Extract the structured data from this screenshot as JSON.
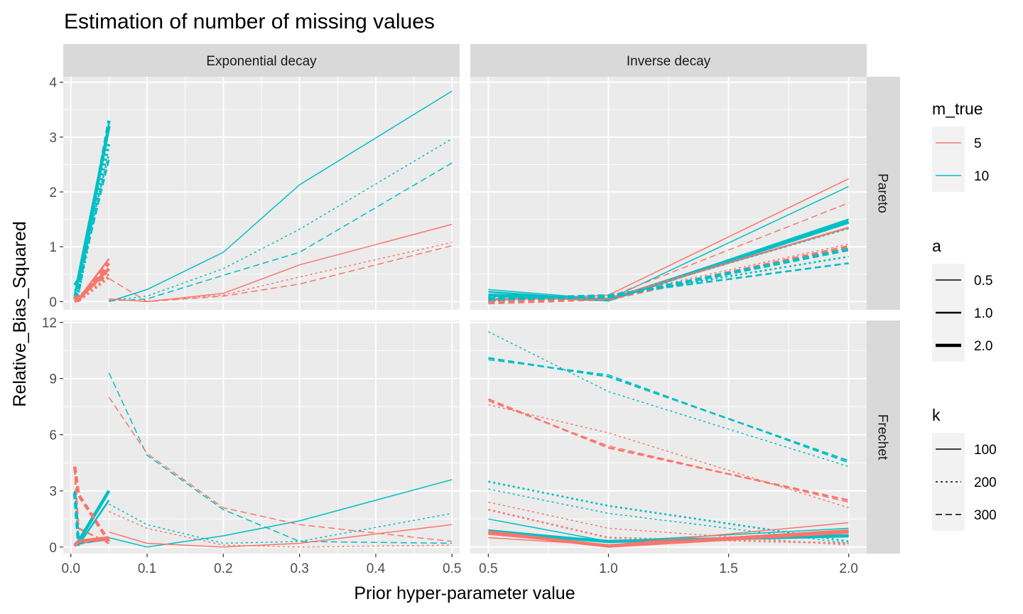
{
  "chart_data": {
    "type": "line",
    "title": "Estimation of number of missing values",
    "xlabel": "Prior hyper-parameter value",
    "ylabel": "Relative_Bias_Squared",
    "grid": true,
    "legend_position": "right",
    "columns": [
      {
        "label": "Exponential decay",
        "xlim": [
          -0.01,
          0.51
        ],
        "xticks": [
          0.0,
          0.1,
          0.2,
          0.3,
          0.4,
          0.5
        ],
        "xtick_labels": [
          "0.0",
          "0.1",
          "0.2",
          "0.3",
          "0.4",
          "0.5"
        ]
      },
      {
        "label": "Inverse decay",
        "xlim": [
          0.425,
          2.075
        ],
        "xticks": [
          0.5,
          1.0,
          1.5,
          2.0
        ],
        "xtick_labels": [
          "0.5",
          "1.0",
          "1.5",
          "2.0"
        ]
      }
    ],
    "rows": [
      {
        "label": "Pareto",
        "ylim": [
          -0.15,
          4.1
        ],
        "yticks": [
          0,
          1,
          2,
          3,
          4
        ],
        "ytick_labels": [
          "0",
          "1",
          "2",
          "3",
          "4"
        ]
      },
      {
        "label": "Frechet",
        "ylim": [
          -0.35,
          12.1
        ],
        "yticks": [
          0,
          3,
          6,
          9,
          12
        ],
        "ytick_labels": [
          "0",
          "3",
          "6",
          "9",
          "12"
        ]
      }
    ],
    "legends": [
      {
        "title": "m_true",
        "kind": "color",
        "entries": [
          {
            "label": "5",
            "color": "#F8766D"
          },
          {
            "label": "10",
            "color": "#00BFC4"
          }
        ]
      },
      {
        "title": "a",
        "kind": "linewidth",
        "entries": [
          {
            "label": "0.5",
            "a": 0.5
          },
          {
            "label": "1.0",
            "a": 1.0
          },
          {
            "label": "2.0",
            "a": 2.0
          }
        ]
      },
      {
        "title": "k",
        "kind": "linetype",
        "entries": [
          {
            "label": "100",
            "k": 100
          },
          {
            "label": "200",
            "k": 200
          },
          {
            "label": "300",
            "k": 300
          }
        ]
      }
    ],
    "series": [
      {
        "col": 0,
        "row": 0,
        "m_true": 10,
        "a": 0.5,
        "k": 100,
        "x": [
          0.05,
          0.1,
          0.2,
          0.3,
          0.5
        ],
        "y": [
          0.0,
          0.22,
          0.9,
          2.13,
          3.84
        ]
      },
      {
        "col": 0,
        "row": 0,
        "m_true": 10,
        "a": 0.5,
        "k": 200,
        "x": [
          0.05,
          0.1,
          0.2,
          0.3,
          0.5
        ],
        "y": [
          0.02,
          0.1,
          0.6,
          1.32,
          2.97
        ]
      },
      {
        "col": 0,
        "row": 0,
        "m_true": 10,
        "a": 0.5,
        "k": 300,
        "x": [
          0.05,
          0.1,
          0.2,
          0.3,
          0.5
        ],
        "y": [
          0.01,
          0.05,
          0.48,
          0.9,
          2.53
        ]
      },
      {
        "col": 0,
        "row": 0,
        "m_true": 5,
        "a": 0.5,
        "k": 100,
        "x": [
          0.05,
          0.1,
          0.2,
          0.3,
          0.5
        ],
        "y": [
          0.05,
          0.0,
          0.15,
          0.67,
          1.41
        ]
      },
      {
        "col": 0,
        "row": 0,
        "m_true": 5,
        "a": 0.5,
        "k": 200,
        "x": [
          0.05,
          0.1,
          0.2,
          0.3,
          0.5
        ],
        "y": [
          0.03,
          0.01,
          0.12,
          0.45,
          1.08
        ]
      },
      {
        "col": 0,
        "row": 0,
        "m_true": 5,
        "a": 0.5,
        "k": 300,
        "x": [
          0.05,
          0.1,
          0.2,
          0.3,
          0.5
        ],
        "y": [
          0.42,
          0.0,
          0.1,
          0.32,
          1.02
        ]
      },
      {
        "col": 0,
        "row": 0,
        "m_true": 10,
        "a": 1.0,
        "k": 100,
        "x": [
          0.005,
          0.01,
          0.05
        ],
        "y": [
          0.1,
          0.5,
          3.25
        ]
      },
      {
        "col": 0,
        "row": 0,
        "m_true": 10,
        "a": 1.0,
        "k": 200,
        "x": [
          0.005,
          0.01,
          0.05
        ],
        "y": [
          0.05,
          0.4,
          2.7
        ]
      },
      {
        "col": 0,
        "row": 0,
        "m_true": 10,
        "a": 1.0,
        "k": 300,
        "x": [
          0.005,
          0.01,
          0.05
        ],
        "y": [
          0.2,
          0.3,
          2.6
        ]
      },
      {
        "col": 0,
        "row": 0,
        "m_true": 5,
        "a": 1.0,
        "k": 100,
        "x": [
          0.005,
          0.01,
          0.05
        ],
        "y": [
          0.0,
          0.05,
          0.78
        ]
      },
      {
        "col": 0,
        "row": 0,
        "m_true": 5,
        "a": 1.0,
        "k": 200,
        "x": [
          0.005,
          0.01,
          0.05
        ],
        "y": [
          0.02,
          0.1,
          0.55
        ]
      },
      {
        "col": 0,
        "row": 0,
        "m_true": 5,
        "a": 1.0,
        "k": 300,
        "x": [
          0.005,
          0.01,
          0.05
        ],
        "y": [
          0.05,
          0.1,
          0.5
        ]
      },
      {
        "col": 0,
        "row": 0,
        "m_true": 10,
        "a": 2.0,
        "k": 100,
        "x": [
          0.005,
          0.01,
          0.05
        ],
        "y": [
          0.3,
          0.4,
          3.2
        ]
      },
      {
        "col": 0,
        "row": 0,
        "m_true": 10,
        "a": 2.0,
        "k": 200,
        "x": [
          0.005,
          0.01,
          0.05
        ],
        "y": [
          0.1,
          0.2,
          2.9
        ]
      },
      {
        "col": 0,
        "row": 0,
        "m_true": 10,
        "a": 2.0,
        "k": 300,
        "x": [
          0.005,
          0.01,
          0.05
        ],
        "y": [
          0.05,
          0.2,
          3.3
        ]
      },
      {
        "col": 0,
        "row": 0,
        "m_true": 5,
        "a": 2.0,
        "k": 100,
        "x": [
          0.005,
          0.01,
          0.05
        ],
        "y": [
          0.0,
          0.05,
          0.6
        ]
      },
      {
        "col": 0,
        "row": 0,
        "m_true": 5,
        "a": 2.0,
        "k": 200,
        "x": [
          0.005,
          0.01,
          0.05
        ],
        "y": [
          0.05,
          0.02,
          0.45
        ]
      },
      {
        "col": 0,
        "row": 0,
        "m_true": 5,
        "a": 2.0,
        "k": 300,
        "x": [
          0.005,
          0.01,
          0.05
        ],
        "y": [
          0.1,
          0.02,
          0.7
        ]
      },
      {
        "col": 1,
        "row": 0,
        "m_true": 5,
        "a": 0.5,
        "k": 100,
        "x": [
          0.5,
          1.0,
          2.0
        ],
        "y": [
          0.02,
          0.12,
          2.24
        ]
      },
      {
        "col": 1,
        "row": 0,
        "m_true": 10,
        "a": 0.5,
        "k": 100,
        "x": [
          0.5,
          1.0,
          2.0
        ],
        "y": [
          0.22,
          0.04,
          2.1
        ]
      },
      {
        "col": 1,
        "row": 0,
        "m_true": 5,
        "a": 0.5,
        "k": 300,
        "x": [
          0.5,
          1.0,
          2.0
        ],
        "y": [
          0.1,
          0.08,
          1.8
        ]
      },
      {
        "col": 1,
        "row": 0,
        "m_true": 10,
        "a": 1.0,
        "k": 100,
        "x": [
          0.5,
          1.0,
          2.0
        ],
        "y": [
          0.18,
          0.02,
          1.5
        ]
      },
      {
        "col": 1,
        "row": 0,
        "m_true": 10,
        "a": 2.0,
        "k": 100,
        "x": [
          0.5,
          1.0,
          2.0
        ],
        "y": [
          0.12,
          0.03,
          1.45
        ]
      },
      {
        "col": 1,
        "row": 0,
        "m_true": 5,
        "a": 1.0,
        "k": 100,
        "x": [
          0.5,
          1.0,
          2.0
        ],
        "y": [
          0.05,
          0.06,
          1.35
        ]
      },
      {
        "col": 1,
        "row": 0,
        "m_true": 10,
        "a": 0.5,
        "k": 200,
        "x": [
          0.5,
          1.0,
          2.0
        ],
        "y": [
          0.08,
          0.06,
          1.33
        ]
      },
      {
        "col": 1,
        "row": 0,
        "m_true": 5,
        "a": 0.5,
        "k": 200,
        "x": [
          0.5,
          1.0,
          2.0
        ],
        "y": [
          0.0,
          0.1,
          1.05
        ]
      },
      {
        "col": 1,
        "row": 0,
        "m_true": 5,
        "a": 2.0,
        "k": 300,
        "x": [
          0.5,
          1.0,
          2.0
        ],
        "y": [
          -0.02,
          0.05,
          1.0
        ]
      },
      {
        "col": 1,
        "row": 0,
        "m_true": 10,
        "a": 2.0,
        "k": 300,
        "x": [
          0.5,
          1.0,
          2.0
        ],
        "y": [
          0.05,
          0.08,
          0.95
        ]
      },
      {
        "col": 1,
        "row": 0,
        "m_true": 10,
        "a": 1.0,
        "k": 200,
        "x": [
          0.5,
          1.0,
          2.0
        ],
        "y": [
          0.02,
          0.1,
          0.82
        ]
      },
      {
        "col": 1,
        "row": 0,
        "m_true": 10,
        "a": 1.0,
        "k": 300,
        "x": [
          0.5,
          1.0,
          2.0
        ],
        "y": [
          0.06,
          0.12,
          0.7
        ]
      },
      {
        "col": 0,
        "row": 1,
        "m_true": 10,
        "a": 0.5,
        "k": 100,
        "x": [
          0.05,
          0.1,
          0.2,
          0.3,
          0.5
        ],
        "y": [
          0.5,
          0.0,
          0.6,
          1.4,
          3.6
        ]
      },
      {
        "col": 0,
        "row": 1,
        "m_true": 10,
        "a": 0.5,
        "k": 200,
        "x": [
          0.05,
          0.1,
          0.2,
          0.3,
          0.5
        ],
        "y": [
          2.3,
          1.2,
          0.2,
          0.3,
          1.8
        ]
      },
      {
        "col": 0,
        "row": 1,
        "m_true": 10,
        "a": 0.5,
        "k": 300,
        "x": [
          0.05,
          0.1,
          0.2,
          0.3,
          0.5
        ],
        "y": [
          9.3,
          4.9,
          2.0,
          0.3,
          0.2
        ]
      },
      {
        "col": 0,
        "row": 1,
        "m_true": 5,
        "a": 0.5,
        "k": 100,
        "x": [
          0.05,
          0.1,
          0.2,
          0.3,
          0.5
        ],
        "y": [
          0.8,
          0.2,
          0.0,
          0.2,
          1.2
        ]
      },
      {
        "col": 0,
        "row": 1,
        "m_true": 5,
        "a": 0.5,
        "k": 200,
        "x": [
          0.05,
          0.1,
          0.2,
          0.3,
          0.5
        ],
        "y": [
          1.9,
          1.0,
          0.1,
          0.0,
          0.1
        ]
      },
      {
        "col": 0,
        "row": 1,
        "m_true": 5,
        "a": 0.5,
        "k": 300,
        "x": [
          0.05,
          0.1,
          0.2,
          0.3,
          0.5
        ],
        "y": [
          8.0,
          5.0,
          2.1,
          1.2,
          0.3
        ]
      },
      {
        "col": 0,
        "row": 1,
        "m_true": 10,
        "a": 1.0,
        "k": 100,
        "x": [
          0.005,
          0.01,
          0.05
        ],
        "y": [
          0.2,
          0.1,
          2.5
        ]
      },
      {
        "col": 0,
        "row": 1,
        "m_true": 10,
        "a": 1.0,
        "k": 300,
        "x": [
          0.005,
          0.01,
          0.05
        ],
        "y": [
          3.0,
          0.3,
          0.4
        ]
      },
      {
        "col": 0,
        "row": 1,
        "m_true": 5,
        "a": 1.0,
        "k": 100,
        "x": [
          0.005,
          0.01,
          0.05
        ],
        "y": [
          0.1,
          0.2,
          0.4
        ]
      },
      {
        "col": 0,
        "row": 1,
        "m_true": 5,
        "a": 1.0,
        "k": 300,
        "x": [
          0.005,
          0.01,
          0.05
        ],
        "y": [
          4.2,
          1.0,
          0.2
        ]
      },
      {
        "col": 0,
        "row": 1,
        "m_true": 10,
        "a": 2.0,
        "k": 100,
        "x": [
          0.005,
          0.01,
          0.05
        ],
        "y": [
          0.1,
          0.3,
          3.0
        ]
      },
      {
        "col": 0,
        "row": 1,
        "m_true": 10,
        "a": 2.0,
        "k": 300,
        "x": [
          0.005,
          0.01,
          0.05
        ],
        "y": [
          2.9,
          0.2,
          0.5
        ]
      },
      {
        "col": 0,
        "row": 1,
        "m_true": 5,
        "a": 2.0,
        "k": 100,
        "x": [
          0.005,
          0.01,
          0.05
        ],
        "y": [
          0.05,
          0.3,
          0.5
        ]
      },
      {
        "col": 0,
        "row": 1,
        "m_true": 5,
        "a": 2.0,
        "k": 300,
        "x": [
          0.005,
          0.01,
          0.05
        ],
        "y": [
          4.3,
          2.8,
          0.3
        ]
      },
      {
        "col": 1,
        "row": 1,
        "m_true": 10,
        "a": 0.5,
        "k": 200,
        "x": [
          0.5,
          1.0,
          2.0
        ],
        "y": [
          11.5,
          8.3,
          4.3
        ]
      },
      {
        "col": 1,
        "row": 1,
        "m_true": 10,
        "a": 1.0,
        "k": 300,
        "x": [
          0.5,
          1.0,
          2.0
        ],
        "y": [
          10.1,
          9.1,
          4.6
        ]
      },
      {
        "col": 1,
        "row": 1,
        "m_true": 10,
        "a": 0.5,
        "k": 300,
        "x": [
          0.5,
          1.0,
          2.0
        ],
        "y": [
          10.0,
          9.2,
          4.5
        ]
      },
      {
        "col": 1,
        "row": 1,
        "m_true": 5,
        "a": 1.0,
        "k": 300,
        "x": [
          0.5,
          1.0,
          2.0
        ],
        "y": [
          7.9,
          5.3,
          2.5
        ]
      },
      {
        "col": 1,
        "row": 1,
        "m_true": 5,
        "a": 0.5,
        "k": 300,
        "x": [
          0.5,
          1.0,
          2.0
        ],
        "y": [
          7.8,
          5.4,
          2.4
        ]
      },
      {
        "col": 1,
        "row": 1,
        "m_true": 5,
        "a": 0.5,
        "k": 200,
        "x": [
          0.5,
          1.0,
          2.0
        ],
        "y": [
          7.6,
          6.1,
          2.1
        ]
      },
      {
        "col": 1,
        "row": 1,
        "m_true": 10,
        "a": 0.5,
        "k": 100,
        "x": [
          0.5,
          1.0,
          2.0
        ],
        "y": [
          1.5,
          0.3,
          1.0
        ]
      },
      {
        "col": 1,
        "row": 1,
        "m_true": 10,
        "a": 1.0,
        "k": 200,
        "x": [
          0.5,
          1.0,
          2.0
        ],
        "y": [
          3.5,
          2.2,
          0.3
        ]
      },
      {
        "col": 1,
        "row": 1,
        "m_true": 10,
        "a": 0.5,
        "k": 200,
        "x": [
          0.5,
          1.0,
          2.0
        ],
        "y": [
          3.1,
          1.8,
          0.2
        ]
      },
      {
        "col": 1,
        "row": 1,
        "m_true": 5,
        "a": 0.5,
        "k": 200,
        "x": [
          0.5,
          1.0,
          2.0
        ],
        "y": [
          2.4,
          1.0,
          0.1
        ]
      },
      {
        "col": 1,
        "row": 1,
        "m_true": 5,
        "a": 1.0,
        "k": 200,
        "x": [
          0.5,
          1.0,
          2.0
        ],
        "y": [
          2.0,
          0.5,
          0.2
        ]
      },
      {
        "col": 1,
        "row": 1,
        "m_true": 10,
        "a": 1.0,
        "k": 100,
        "x": [
          0.5,
          1.0,
          2.0
        ],
        "y": [
          0.9,
          0.3,
          0.6
        ]
      },
      {
        "col": 1,
        "row": 1,
        "m_true": 10,
        "a": 2.0,
        "k": 100,
        "x": [
          0.5,
          1.0,
          2.0
        ],
        "y": [
          0.8,
          0.3,
          0.6
        ]
      },
      {
        "col": 1,
        "row": 1,
        "m_true": 5,
        "a": 0.5,
        "k": 100,
        "x": [
          0.5,
          1.0,
          2.0
        ],
        "y": [
          0.5,
          0.1,
          1.3
        ]
      },
      {
        "col": 1,
        "row": 1,
        "m_true": 5,
        "a": 1.0,
        "k": 100,
        "x": [
          0.5,
          1.0,
          2.0
        ],
        "y": [
          0.7,
          0.1,
          0.9
        ]
      },
      {
        "col": 1,
        "row": 1,
        "m_true": 5,
        "a": 2.0,
        "k": 100,
        "x": [
          0.5,
          1.0,
          2.0
        ],
        "y": [
          0.8,
          0.05,
          0.8
        ]
      }
    ]
  }
}
